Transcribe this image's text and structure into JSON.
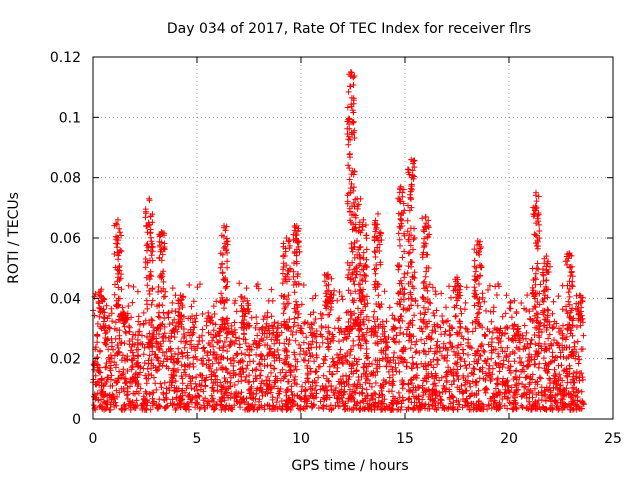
{
  "chart_data": {
    "type": "scatter",
    "title": "Day 034 of 2017, Rate Of TEC Index for receiver flrs",
    "xlabel": "GPS time / hours",
    "ylabel": "ROTI / TECUs",
    "xlim": [
      0,
      25
    ],
    "ylim": [
      0,
      0.12
    ],
    "xticks": [
      0,
      5,
      10,
      15,
      20,
      25
    ],
    "xtick_labels": [
      "0",
      "5",
      "10",
      "15",
      "20",
      "25"
    ],
    "yticks": [
      0,
      0.02,
      0.04,
      0.06,
      0.08,
      0.1,
      0.12
    ],
    "ytick_labels": [
      "0",
      "0.02",
      "0.04",
      "0.06",
      "0.08",
      "0.1",
      "0.12"
    ],
    "grid": true,
    "marker": "+",
    "color": "#ff0000",
    "series": [
      {
        "name": "ROTI",
        "bands": [
          {
            "x_range": [
              0.0,
              23.6
            ],
            "y_range": [
              0.003,
              0.03
            ],
            "density": "dense"
          },
          {
            "x_range": [
              0.0,
              23.6
            ],
            "y_range": [
              0.03,
              0.045
            ],
            "density": "scattered"
          }
        ],
        "spikes": [
          {
            "x": 0.4,
            "max": 0.043
          },
          {
            "x": 1.2,
            "max": 0.066
          },
          {
            "x": 1.5,
            "max": 0.035
          },
          {
            "x": 2.7,
            "max": 0.073
          },
          {
            "x": 3.3,
            "max": 0.062
          },
          {
            "x": 4.2,
            "max": 0.041
          },
          {
            "x": 6.3,
            "max": 0.064
          },
          {
            "x": 7.3,
            "max": 0.04
          },
          {
            "x": 9.3,
            "max": 0.06
          },
          {
            "x": 9.8,
            "max": 0.064
          },
          {
            "x": 11.3,
            "max": 0.048
          },
          {
            "x": 12.4,
            "max": 0.115
          },
          {
            "x": 12.7,
            "max": 0.073
          },
          {
            "x": 13.0,
            "max": 0.066
          },
          {
            "x": 13.7,
            "max": 0.068
          },
          {
            "x": 14.8,
            "max": 0.077
          },
          {
            "x": 15.3,
            "max": 0.086
          },
          {
            "x": 16.0,
            "max": 0.067
          },
          {
            "x": 17.5,
            "max": 0.047
          },
          {
            "x": 18.5,
            "max": 0.059
          },
          {
            "x": 21.3,
            "max": 0.075
          },
          {
            "x": 21.8,
            "max": 0.054
          },
          {
            "x": 22.9,
            "max": 0.055
          },
          {
            "x": 23.4,
            "max": 0.041
          }
        ]
      }
    ]
  }
}
